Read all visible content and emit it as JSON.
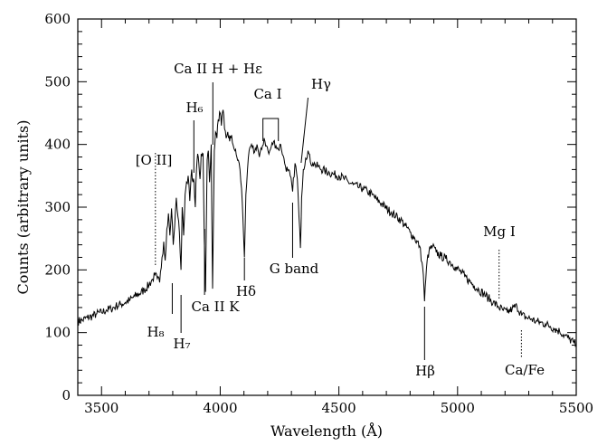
{
  "chart_data": {
    "type": "line",
    "title": "",
    "xlabel": "Wavelength (Å)",
    "ylabel": "Counts (arbitrary units)",
    "xlim": [
      3400,
      5500
    ],
    "ylim": [
      0,
      600
    ],
    "xticks": [
      3500,
      4000,
      4500,
      5000,
      5500
    ],
    "yticks": [
      0,
      100,
      200,
      300,
      400,
      500,
      600
    ],
    "grid": false,
    "series": [
      {
        "name": "",
        "points": [
          [
            3400,
            118
          ],
          [
            3420,
            120
          ],
          [
            3440,
            124
          ],
          [
            3460,
            126
          ],
          [
            3480,
            130
          ],
          [
            3500,
            132
          ],
          [
            3520,
            136
          ],
          [
            3540,
            138
          ],
          [
            3560,
            142
          ],
          [
            3580,
            145
          ],
          [
            3600,
            148
          ],
          [
            3620,
            152
          ],
          [
            3640,
            158
          ],
          [
            3660,
            162
          ],
          [
            3680,
            168
          ],
          [
            3700,
            176
          ],
          [
            3715,
            185
          ],
          [
            3725,
            192
          ],
          [
            3735,
            186
          ],
          [
            3745,
            180
          ],
          [
            3755,
            220
          ],
          [
            3762,
            245
          ],
          [
            3768,
            215
          ],
          [
            3775,
            265
          ],
          [
            3782,
            290
          ],
          [
            3788,
            255
          ],
          [
            3795,
            298
          ],
          [
            3802,
            240
          ],
          [
            3808,
            270
          ],
          [
            3815,
            315
          ],
          [
            3822,
            285
          ],
          [
            3828,
            260
          ],
          [
            3835,
            200
          ],
          [
            3840,
            300
          ],
          [
            3846,
            255
          ],
          [
            3852,
            320
          ],
          [
            3858,
            340
          ],
          [
            3865,
            350
          ],
          [
            3872,
            310
          ],
          [
            3880,
            360
          ],
          [
            3885,
            340
          ],
          [
            3890,
            340
          ],
          [
            3895,
            300
          ],
          [
            3900,
            360
          ],
          [
            3905,
            385
          ],
          [
            3910,
            370
          ],
          [
            3915,
            345
          ],
          [
            3920,
            385
          ],
          [
            3928,
            385
          ],
          [
            3933,
            250
          ],
          [
            3938,
            165
          ],
          [
            3945,
            375
          ],
          [
            3950,
            390
          ],
          [
            3955,
            340
          ],
          [
            3962,
            400
          ],
          [
            3968,
            170
          ],
          [
            3975,
            390
          ],
          [
            3980,
            420
          ],
          [
            3986,
            410
          ],
          [
            3992,
            440
          ],
          [
            4000,
            450
          ],
          [
            4005,
            430
          ],
          [
            4012,
            455
          ],
          [
            4018,
            425
          ],
          [
            4025,
            410
          ],
          [
            4032,
            420
          ],
          [
            4040,
            405
          ],
          [
            4048,
            415
          ],
          [
            4055,
            398
          ],
          [
            4062,
            390
          ],
          [
            4070,
            380
          ],
          [
            4080,
            370
          ],
          [
            4090,
            330
          ],
          [
            4096,
            280
          ],
          [
            4102,
            220
          ],
          [
            4108,
            320
          ],
          [
            4115,
            360
          ],
          [
            4125,
            395
          ],
          [
            4135,
            395
          ],
          [
            4145,
            388
          ],
          [
            4155,
            400
          ],
          [
            4165,
            380
          ],
          [
            4175,
            392
          ],
          [
            4185,
            410
          ],
          [
            4195,
            398
          ],
          [
            4205,
            385
          ],
          [
            4215,
            396
          ],
          [
            4225,
            405
          ],
          [
            4235,
            398
          ],
          [
            4245,
            392
          ],
          [
            4255,
            400
          ],
          [
            4265,
            382
          ],
          [
            4275,
            365
          ],
          [
            4285,
            358
          ],
          [
            4295,
            350
          ],
          [
            4305,
            325
          ],
          [
            4315,
            370
          ],
          [
            4325,
            345
          ],
          [
            4332,
            285
          ],
          [
            4338,
            235
          ],
          [
            4343,
            315
          ],
          [
            4350,
            360
          ],
          [
            4360,
            378
          ],
          [
            4370,
            390
          ],
          [
            4380,
            372
          ],
          [
            4390,
            370
          ],
          [
            4400,
            368
          ],
          [
            4420,
            362
          ],
          [
            4440,
            358
          ],
          [
            4460,
            355
          ],
          [
            4480,
            352
          ],
          [
            4500,
            350
          ],
          [
            4520,
            346
          ],
          [
            4540,
            340
          ],
          [
            4560,
            336
          ],
          [
            4580,
            332
          ],
          [
            4600,
            330
          ],
          [
            4620,
            325
          ],
          [
            4640,
            320
          ],
          [
            4660,
            312
          ],
          [
            4680,
            306
          ],
          [
            4700,
            298
          ],
          [
            4720,
            292
          ],
          [
            4740,
            286
          ],
          [
            4760,
            280
          ],
          [
            4780,
            270
          ],
          [
            4800,
            260
          ],
          [
            4820,
            250
          ],
          [
            4840,
            238
          ],
          [
            4850,
            212
          ],
          [
            4856,
            192
          ],
          [
            4861,
            150
          ],
          [
            4866,
            185
          ],
          [
            4872,
            215
          ],
          [
            4880,
            230
          ],
          [
            4895,
            238
          ],
          [
            4910,
            228
          ],
          [
            4930,
            222
          ],
          [
            4950,
            218
          ],
          [
            4970,
            212
          ],
          [
            4990,
            205
          ],
          [
            5010,
            198
          ],
          [
            5030,
            190
          ],
          [
            5050,
            182
          ],
          [
            5070,
            175
          ],
          [
            5090,
            168
          ],
          [
            5110,
            162
          ],
          [
            5130,
            155
          ],
          [
            5150,
            148
          ],
          [
            5170,
            142
          ],
          [
            5190,
            136
          ],
          [
            5210,
            132
          ],
          [
            5230,
            138
          ],
          [
            5250,
            142
          ],
          [
            5270,
            128
          ],
          [
            5290,
            124
          ],
          [
            5310,
            122
          ],
          [
            5330,
            118
          ],
          [
            5350,
            116
          ],
          [
            5370,
            114
          ],
          [
            5390,
            110
          ],
          [
            5410,
            106
          ],
          [
            5430,
            102
          ],
          [
            5450,
            96
          ],
          [
            5470,
            90
          ],
          [
            5490,
            84
          ],
          [
            5500,
            80
          ]
        ]
      }
    ],
    "annotations": [
      {
        "text": "[O II]",
        "x": 3727
      },
      {
        "text": "H₈",
        "x": 3798
      },
      {
        "text": "H₇",
        "x": 3835
      },
      {
        "text": "H₆",
        "x": 3889
      },
      {
        "text": "Ca II K",
        "x": 3934
      },
      {
        "text": "Ca II H + Hε",
        "x": 3969
      },
      {
        "text": "Hδ",
        "x": 4102
      },
      {
        "text": "Ca I",
        "x": 4227
      },
      {
        "text": "G band",
        "x": 4305
      },
      {
        "text": "Hγ",
        "x": 4341
      },
      {
        "text": "Hβ",
        "x": 4861
      },
      {
        "text": "Mg I",
        "x": 5175
      },
      {
        "text": "Ca/Fe",
        "x": 5269
      }
    ]
  }
}
